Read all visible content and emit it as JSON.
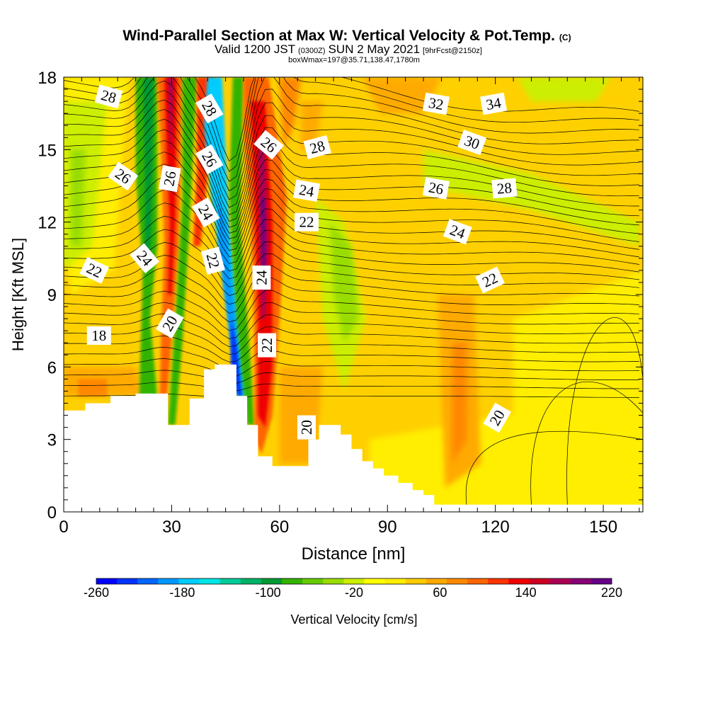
{
  "chart_data": {
    "type": "heatmap",
    "title": "Wind-Parallel Section at Max W: Vertical Velocity & Pot.Temp.",
    "title_mark": "(C)",
    "subtitle_parts": [
      "Valid 1200 JST",
      "(0300Z)",
      "SUN 2 May 2021",
      "[9hrFcst@2150z]"
    ],
    "subtitle2": "boxWmax=197@35.71,138.47,1780m",
    "xlabel": "Distance [nm]",
    "ylabel": "Height [Kft MSL]",
    "xlim": [
      0,
      161
    ],
    "ylim": [
      0,
      18
    ],
    "xticks": [
      0,
      30,
      60,
      90,
      120,
      150
    ],
    "yticks": [
      0,
      3,
      6,
      9,
      12,
      15,
      18
    ],
    "colorbar": {
      "label": "Vertical Velocity [cm/s]",
      "min": -260,
      "max": 220,
      "step": 20,
      "tick_labels": [
        "-260",
        "-180",
        "-100",
        "-20",
        "60",
        "140",
        "220"
      ],
      "colors": [
        "#0000ff",
        "#0033ff",
        "#0066ff",
        "#0099ff",
        "#00ccff",
        "#00e5e5",
        "#00cc99",
        "#00b366",
        "#009933",
        "#33b300",
        "#66cc00",
        "#99dd00",
        "#ccee00",
        "#ffff00",
        "#ffee00",
        "#ffcc00",
        "#ffaa00",
        "#ff8800",
        "#ff6600",
        "#ff3300",
        "#ee0000",
        "#cc0022",
        "#aa0055",
        "#880077",
        "#660088"
      ]
    },
    "contour_labels": [
      {
        "text": "28",
        "x": 12.5,
        "y": 17.2,
        "rot": 15
      },
      {
        "text": "26",
        "x": 16.5,
        "y": 13.9,
        "rot": 35
      },
      {
        "text": "22",
        "x": 8.5,
        "y": 10.0,
        "rot": 25
      },
      {
        "text": "18",
        "x": 9.8,
        "y": 7.3,
        "rot": 0
      },
      {
        "text": "24",
        "x": 22.5,
        "y": 10.5,
        "rot": 50
      },
      {
        "text": "20",
        "x": 29.5,
        "y": 7.8,
        "rot": -60
      },
      {
        "text": "26",
        "x": 29.5,
        "y": 13.8,
        "rot": -80
      },
      {
        "text": "28",
        "x": 40.5,
        "y": 16.7,
        "rot": 60
      },
      {
        "text": "26",
        "x": 40.5,
        "y": 14.6,
        "rot": 60
      },
      {
        "text": "24",
        "x": 39.5,
        "y": 12.4,
        "rot": 60
      },
      {
        "text": "22",
        "x": 41.5,
        "y": 10.4,
        "rot": 75
      },
      {
        "text": "26",
        "x": 57.0,
        "y": 15.2,
        "rot": 40
      },
      {
        "text": "24",
        "x": 55.0,
        "y": 9.7,
        "rot": -90
      },
      {
        "text": "22",
        "x": 56.5,
        "y": 6.9,
        "rot": -90
      },
      {
        "text": "28",
        "x": 70.5,
        "y": 15.1,
        "rot": -15
      },
      {
        "text": "24",
        "x": 67.5,
        "y": 13.3,
        "rot": 10
      },
      {
        "text": "22",
        "x": 67.5,
        "y": 12.0,
        "rot": 0
      },
      {
        "text": "32",
        "x": 103.5,
        "y": 16.9,
        "rot": 10
      },
      {
        "text": "34",
        "x": 119.5,
        "y": 16.9,
        "rot": -10
      },
      {
        "text": "30",
        "x": 113.5,
        "y": 15.3,
        "rot": 20
      },
      {
        "text": "26",
        "x": 103.5,
        "y": 13.4,
        "rot": 10
      },
      {
        "text": "28",
        "x": 122.5,
        "y": 13.4,
        "rot": -5
      },
      {
        "text": "24",
        "x": 109.5,
        "y": 11.6,
        "rot": 20
      },
      {
        "text": "22",
        "x": 118.5,
        "y": 9.6,
        "rot": -25
      },
      {
        "text": "20",
        "x": 67.5,
        "y": 3.5,
        "rot": -90
      },
      {
        "text": "20",
        "x": 120.5,
        "y": 3.9,
        "rot": -60
      }
    ]
  }
}
